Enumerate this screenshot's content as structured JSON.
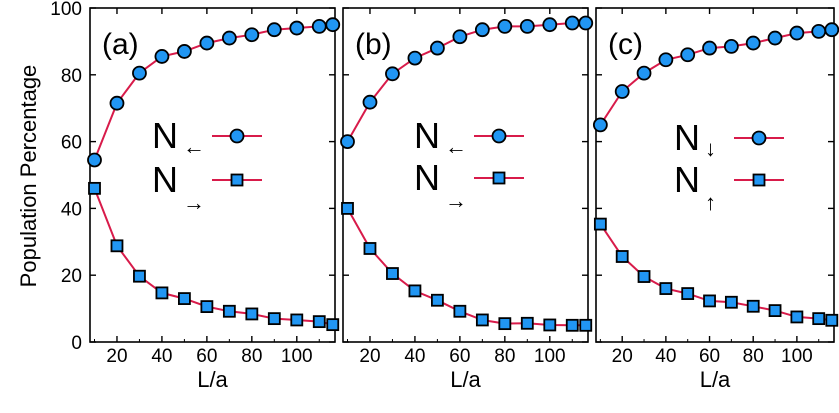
{
  "chart_data": [
    {
      "type": "line",
      "panel_label": "(a)",
      "xlabel": "L/a",
      "ylabel": "Population Percentage",
      "xlim": [
        8,
        117
      ],
      "ylim": [
        0,
        100
      ],
      "x_ticks": [
        20,
        40,
        60,
        80,
        100
      ],
      "y_ticks": [
        0,
        20,
        40,
        60,
        80,
        100
      ],
      "x": [
        10,
        20,
        30,
        40,
        50,
        60,
        70,
        80,
        90,
        100,
        110,
        116
      ],
      "series": [
        {
          "name": "N←",
          "name_main": "N",
          "name_sub": "←",
          "marker": "circle",
          "values": [
            54.5,
            71.5,
            80.5,
            85.5,
            87.0,
            89.5,
            91.0,
            92.0,
            93.5,
            94.0,
            94.5,
            95.0
          ]
        },
        {
          "name": "N→",
          "name_main": "N",
          "name_sub": "→",
          "marker": "square",
          "values": [
            46.0,
            28.8,
            19.7,
            14.7,
            13.0,
            10.6,
            9.2,
            8.4,
            7.0,
            6.6,
            6.1,
            5.2
          ]
        }
      ],
      "line_color": "#d81b4a",
      "marker_fill": "#2196f3",
      "grid": false
    },
    {
      "type": "line",
      "panel_label": "(b)",
      "xlabel": "L/a",
      "ylabel": "",
      "xlim": [
        8,
        117
      ],
      "ylim": [
        0,
        100
      ],
      "x_ticks": [
        20,
        40,
        60,
        80,
        100
      ],
      "y_ticks": [],
      "x": [
        10,
        20,
        30,
        40,
        50,
        60,
        70,
        80,
        90,
        100,
        110,
        116
      ],
      "series": [
        {
          "name": "N←",
          "name_main": "N",
          "name_sub": "←",
          "marker": "circle",
          "values": [
            60.0,
            71.8,
            80.3,
            85.0,
            88.0,
            91.4,
            93.5,
            94.5,
            94.5,
            95.0,
            95.5,
            95.5
          ]
        },
        {
          "name": "N→",
          "name_main": "N",
          "name_sub": "→",
          "marker": "square",
          "values": [
            40.0,
            28.0,
            20.5,
            15.3,
            12.5,
            9.2,
            6.6,
            5.5,
            5.6,
            5.1,
            5.0,
            5.0
          ]
        }
      ],
      "line_color": "#d81b4a",
      "marker_fill": "#2196f3",
      "grid": false
    },
    {
      "type": "line",
      "panel_label": "(c)",
      "xlabel": "L/a",
      "ylabel": "",
      "xlim": [
        8,
        117
      ],
      "ylim": [
        0,
        100
      ],
      "x_ticks": [
        20,
        40,
        60,
        80,
        100
      ],
      "y_ticks": [],
      "x": [
        10,
        20,
        30,
        40,
        50,
        60,
        70,
        80,
        90,
        100,
        110,
        116
      ],
      "series": [
        {
          "name": "N↓",
          "name_main": "N",
          "name_sub": "↓",
          "marker": "circle",
          "values": [
            65.0,
            75.0,
            80.5,
            84.5,
            86.0,
            88.0,
            88.5,
            89.5,
            91.0,
            92.5,
            93.0,
            93.5
          ]
        },
        {
          "name": "N↑",
          "name_main": "N",
          "name_sub": "↑",
          "marker": "square",
          "values": [
            35.3,
            25.6,
            19.6,
            16.0,
            14.5,
            12.3,
            11.9,
            10.7,
            9.4,
            7.5,
            7.0,
            6.5
          ]
        }
      ],
      "line_color": "#d81b4a",
      "marker_fill": "#2196f3",
      "grid": false
    }
  ]
}
